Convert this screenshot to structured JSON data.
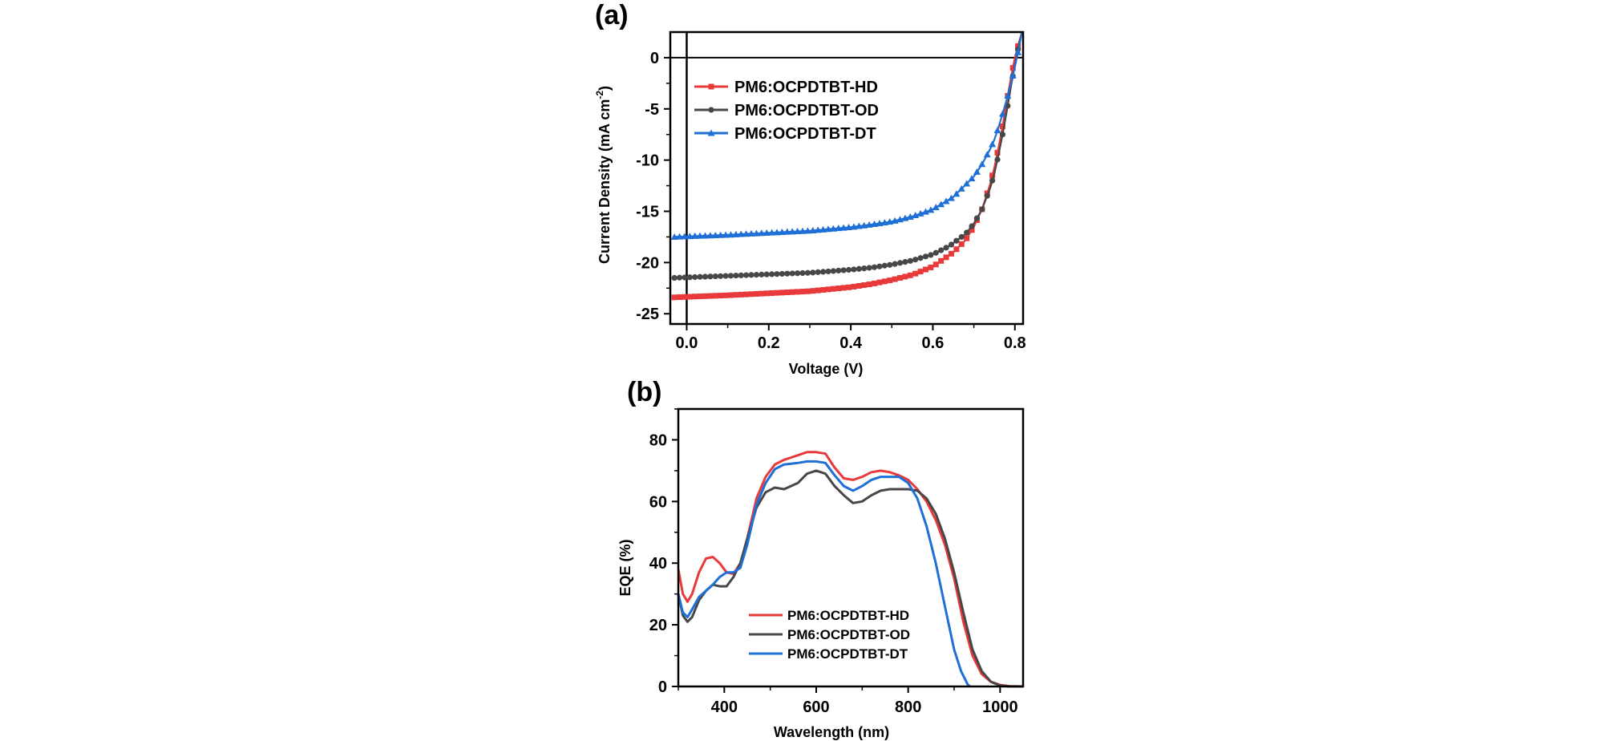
{
  "chart_data": [
    {
      "panel_label": "(a)",
      "type": "line",
      "xlabel": "Voltage (V)",
      "ylabel_main": "Current Density (mA cm",
      "ylabel_sup": "-2",
      "ylabel_close": ")",
      "xlim": [
        -0.04,
        0.82
      ],
      "ylim": [
        -26,
        2.5
      ],
      "xticks": [
        0.0,
        0.2,
        0.4,
        0.6,
        0.8
      ],
      "xtick_labels": [
        "0.0",
        "0.2",
        "0.4",
        "0.6",
        "0.8"
      ],
      "yticks": [
        0,
        -5,
        -10,
        -15,
        -20,
        -25
      ],
      "ytick_labels": [
        "0",
        "-5",
        "-10",
        "-15",
        "-20",
        "-25"
      ],
      "legend_position": "top-left",
      "series": [
        {
          "name": "PM6:OCPDTBT-HD",
          "color": "#e8393b",
          "marker": "square",
          "x": [
            -0.03,
            0.0,
            0.1,
            0.2,
            0.3,
            0.4,
            0.45,
            0.5,
            0.55,
            0.6,
            0.65,
            0.68,
            0.7,
            0.72,
            0.74,
            0.75,
            0.76,
            0.77,
            0.78,
            0.79,
            0.8,
            0.81,
            0.817
          ],
          "y": [
            -23.4,
            -23.35,
            -23.2,
            -23.0,
            -22.8,
            -22.4,
            -22.1,
            -21.7,
            -21.2,
            -20.4,
            -19.0,
            -17.8,
            -16.5,
            -14.8,
            -12.3,
            -10.7,
            -8.8,
            -6.7,
            -4.3,
            -2.0,
            0.0,
            1.5,
            2.5
          ]
        },
        {
          "name": "PM6:OCPDTBT-OD",
          "color": "#474747",
          "marker": "circle",
          "x": [
            -0.03,
            0.0,
            0.1,
            0.2,
            0.3,
            0.4,
            0.45,
            0.5,
            0.55,
            0.6,
            0.64,
            0.68,
            0.7,
            0.72,
            0.74,
            0.75,
            0.76,
            0.77,
            0.78,
            0.79,
            0.8,
            0.81,
            0.817
          ],
          "y": [
            -21.5,
            -21.45,
            -21.3,
            -21.15,
            -21.0,
            -20.7,
            -20.5,
            -20.2,
            -19.8,
            -19.2,
            -18.4,
            -17.2,
            -16.2,
            -14.8,
            -12.7,
            -11.3,
            -9.5,
            -7.5,
            -5.3,
            -2.9,
            -0.7,
            1.3,
            2.5
          ]
        },
        {
          "name": "PM6:OCPDTBT-DT",
          "color": "#1e6fd6",
          "marker": "triangle",
          "x": [
            -0.03,
            0.0,
            0.1,
            0.2,
            0.3,
            0.4,
            0.45,
            0.5,
            0.55,
            0.6,
            0.65,
            0.7,
            0.72,
            0.74,
            0.75,
            0.76,
            0.77,
            0.78,
            0.79,
            0.8,
            0.81,
            0.817
          ],
          "y": [
            -17.5,
            -17.45,
            -17.3,
            -17.1,
            -16.9,
            -16.55,
            -16.3,
            -16.0,
            -15.5,
            -14.8,
            -13.6,
            -11.6,
            -10.4,
            -8.9,
            -8.0,
            -6.8,
            -5.5,
            -4.1,
            -2.6,
            -0.9,
            1.0,
            2.5
          ]
        }
      ]
    },
    {
      "panel_label": "(b)",
      "type": "line",
      "xlabel": "Wavelength (nm)",
      "ylabel": "EQE (%)",
      "xlim": [
        300,
        1050
      ],
      "ylim": [
        0,
        90
      ],
      "xticks": [
        400,
        600,
        800,
        1000
      ],
      "xtick_labels": [
        "400",
        "600",
        "800",
        "1000"
      ],
      "yticks": [
        0,
        20,
        40,
        60,
        80
      ],
      "ytick_labels": [
        "0",
        "20",
        "40",
        "60",
        "80"
      ],
      "legend_position": "bottom-center",
      "series": [
        {
          "name": "PM6:OCPDTBT-HD",
          "color": "#e8393b",
          "x": [
            300,
            310,
            320,
            330,
            345,
            360,
            375,
            390,
            405,
            420,
            435,
            450,
            470,
            490,
            510,
            530,
            560,
            580,
            600,
            620,
            640,
            660,
            680,
            700,
            720,
            740,
            760,
            780,
            800,
            820,
            840,
            860,
            880,
            900,
            920,
            940,
            960,
            980,
            1000,
            1020,
            1050
          ],
          "y": [
            38,
            30,
            27.5,
            30,
            37,
            41.5,
            42,
            40,
            37,
            36.5,
            40,
            48,
            61,
            68,
            72,
            73.5,
            75,
            76,
            76,
            75.5,
            71,
            67.5,
            67,
            68,
            69.5,
            70,
            69.5,
            68.5,
            67,
            64,
            60,
            54,
            46,
            35,
            21,
            10,
            4,
            1.5,
            0.5,
            0.1,
            0
          ]
        },
        {
          "name": "PM6:OCPDTBT-OD",
          "color": "#474747",
          "x": [
            300,
            310,
            320,
            330,
            345,
            360,
            375,
            390,
            405,
            420,
            435,
            450,
            470,
            490,
            510,
            530,
            560,
            580,
            600,
            620,
            640,
            660,
            680,
            700,
            720,
            740,
            760,
            780,
            800,
            820,
            840,
            860,
            880,
            900,
            920,
            940,
            960,
            980,
            1000,
            1020,
            1050
          ],
          "y": [
            30,
            23,
            21,
            22.5,
            28,
            31,
            33,
            32.5,
            32.5,
            35.5,
            40,
            48,
            58,
            63,
            64.5,
            64,
            66,
            69,
            70,
            69,
            65,
            62,
            59.5,
            60,
            62,
            63.5,
            64,
            64,
            64,
            63.5,
            61,
            56,
            48,
            37,
            24,
            12,
            5,
            1.5,
            0.3,
            0,
            0
          ]
        },
        {
          "name": "PM6:OCPDTBT-DT",
          "color": "#1e6fd6",
          "x": [
            300,
            310,
            320,
            330,
            345,
            360,
            375,
            390,
            405,
            420,
            435,
            450,
            470,
            490,
            510,
            530,
            560,
            580,
            600,
            620,
            640,
            660,
            680,
            700,
            720,
            740,
            760,
            780,
            800,
            820,
            840,
            860,
            880,
            900,
            915,
            930,
            935
          ],
          "y": [
            30,
            24,
            22.5,
            25,
            29,
            31,
            33,
            35.5,
            37,
            37,
            38.5,
            46,
            59,
            66,
            70.5,
            72,
            72.5,
            73,
            73,
            72.5,
            68.5,
            65,
            63.5,
            65,
            67,
            68,
            68,
            68,
            66,
            61,
            52,
            40,
            26,
            12,
            5,
            0.5,
            0
          ]
        }
      ]
    }
  ]
}
